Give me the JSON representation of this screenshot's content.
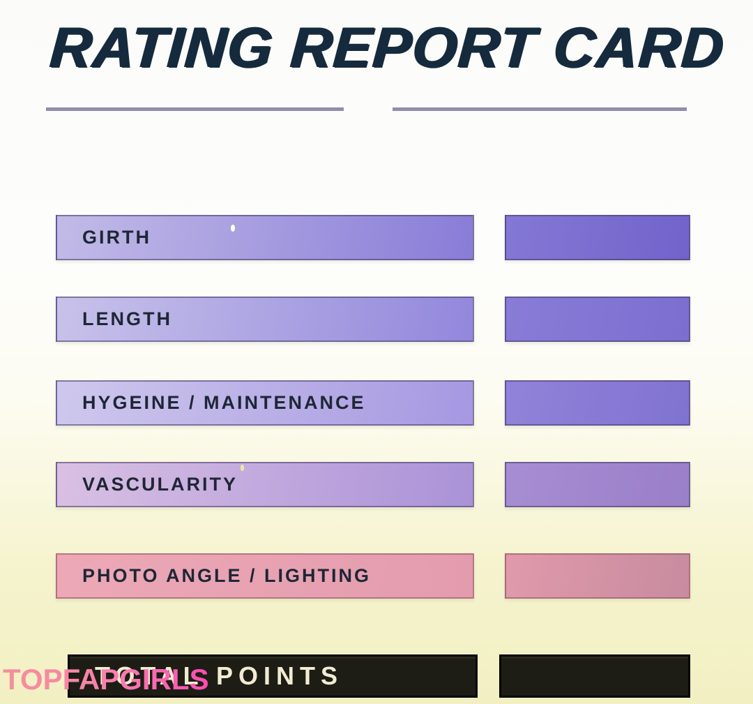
{
  "title": "RATING REPORT CARD",
  "rows": [
    {
      "label": "GIRTH",
      "bar_colors": [
        "#c2bbe7",
        "#897cd8"
      ],
      "box_colors": [
        "#8478d5",
        "#7163ca"
      ]
    },
    {
      "label": "LENGTH",
      "bar_colors": [
        "#c8c2ea",
        "#9287dc"
      ],
      "box_colors": [
        "#897cd7",
        "#7c6ecf"
      ]
    },
    {
      "label": "HYGEINE / MAINTENANCE",
      "bar_colors": [
        "#cfc8ed",
        "#a698e1"
      ],
      "box_colors": [
        "#9183d9",
        "#8072d0"
      ]
    },
    {
      "label": "VASCULARITY",
      "bar_colors": [
        "#d9c0e3",
        "#aa92d8"
      ],
      "box_colors": [
        "#a78dd2",
        "#9a7fc9"
      ]
    },
    {
      "label": "PHOTO ANGLE / LIGHTING",
      "bar_colors": [
        "#eda8b6",
        "#e29cae"
      ],
      "box_colors": [
        "#e09aab",
        "#c88b9f"
      ]
    }
  ],
  "total": {
    "label": "TOTAL POINTS"
  },
  "watermark": {
    "text": "TOPFAPGIRLS",
    "colors": [
      "#f5909b",
      "#fb4bb2"
    ]
  },
  "theme": {
    "title_color": "#152a3d",
    "divider_color": "#918cae",
    "label_color": "#1e2636",
    "total_bar_color": "#1d1d15",
    "total_text_color": "#f2ebd3",
    "background_top": "#fbfbf9",
    "background_bottom": "#f2f0c2"
  }
}
